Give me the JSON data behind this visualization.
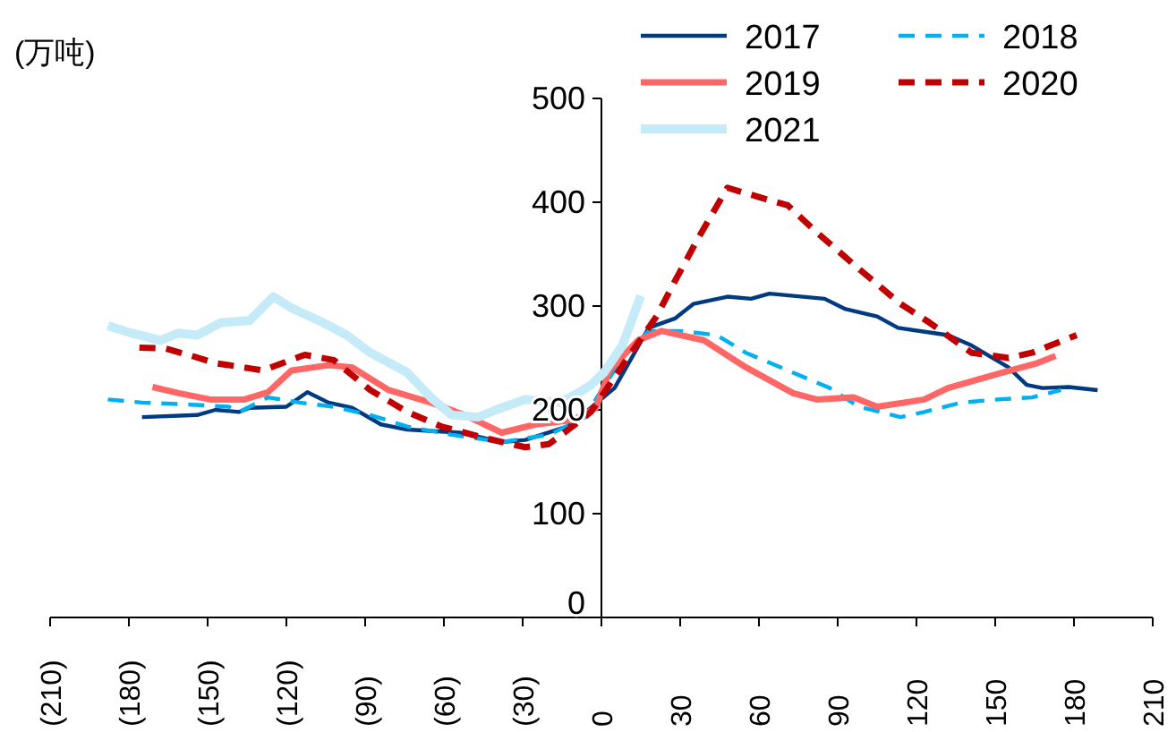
{
  "chart_data": {
    "type": "line",
    "ylabel": "(万吨)",
    "legend": "top right",
    "xlim": [
      -210,
      210
    ],
    "ylim": [
      0,
      500
    ],
    "xticks": [
      {
        "value": -210,
        "label": "(210)"
      },
      {
        "value": -180,
        "label": "(180)"
      },
      {
        "value": -150,
        "label": "(150)"
      },
      {
        "value": -120,
        "label": "(120)"
      },
      {
        "value": -90,
        "label": "(90)"
      },
      {
        "value": -60,
        "label": "(60)"
      },
      {
        "value": -30,
        "label": "(30)"
      },
      0,
      30,
      60,
      90,
      120,
      150,
      180,
      210
    ],
    "yticks": [
      0,
      100,
      200,
      300,
      400,
      500
    ],
    "series": [
      {
        "name": "2017",
        "color": "#003a80",
        "line_style": "solid",
        "x": [
          -175,
          -154,
          -147,
          -138,
          -134,
          -120,
          -112,
          -104,
          -95,
          -84,
          -74,
          -54,
          -38,
          -29,
          -13,
          -4,
          5,
          18,
          28,
          35,
          48,
          57,
          64,
          85,
          93,
          105,
          113,
          132,
          141,
          155,
          162,
          168,
          178,
          189
        ],
        "values": [
          193,
          195,
          200,
          198,
          202,
          203,
          217,
          207,
          202,
          186,
          181,
          178,
          169,
          171,
          184,
          202,
          221,
          279,
          288,
          302,
          309,
          307,
          312,
          307,
          297,
          290,
          279,
          272,
          262,
          241,
          224,
          221,
          222,
          219
        ]
      },
      {
        "name": "2018",
        "color": "#00b0f0",
        "line_style": "dashed",
        "x": [
          -188,
          -175,
          -156,
          -142,
          -138,
          -127,
          -115,
          -102,
          -88,
          -74,
          -57,
          -38,
          -20,
          -6,
          -4,
          8,
          18,
          30,
          44,
          55,
          71,
          87,
          98,
          114,
          123,
          137,
          151,
          164,
          175
        ],
        "values": [
          210,
          207,
          205,
          203,
          198,
          212,
          207,
          203,
          195,
          184,
          176,
          169,
          176,
          193,
          203,
          250,
          276,
          276,
          272,
          255,
          238,
          221,
          203,
          193,
          198,
          207,
          210,
          212,
          219
        ]
      },
      {
        "name": "2019",
        "color": "#ff6666",
        "line_style": "solid",
        "x": [
          -171,
          -161,
          -149,
          -136,
          -127,
          -118,
          -104,
          -95,
          -81,
          -65,
          -52,
          -38,
          -25,
          -11,
          -2,
          3,
          14,
          23,
          39,
          55,
          73,
          82,
          96,
          105,
          123,
          132,
          153,
          166,
          173
        ],
        "values": [
          222,
          216,
          210,
          210,
          217,
          238,
          243,
          241,
          219,
          207,
          195,
          178,
          186,
          190,
          202,
          238,
          267,
          276,
          267,
          241,
          216,
          210,
          212,
          203,
          210,
          221,
          236,
          245,
          252
        ]
      },
      {
        "name": "2020",
        "color": "#c00000",
        "line_style": "dashed",
        "x": [
          -176,
          -166,
          -156,
          -147,
          -134,
          -129,
          -113,
          -102,
          -88,
          -74,
          -61,
          -43,
          -29,
          -20,
          -11,
          -4,
          10,
          21,
          28,
          37,
          48,
          64,
          71,
          82,
          98,
          114,
          125,
          141,
          155,
          164,
          181
        ],
        "values": [
          260,
          259,
          252,
          245,
          240,
          238,
          253,
          248,
          219,
          198,
          184,
          172,
          164,
          167,
          184,
          198,
          250,
          290,
          324,
          366,
          414,
          402,
          397,
          371,
          336,
          302,
          284,
          255,
          250,
          255,
          272
        ]
      },
      {
        "name": "2021",
        "color": "#c5eaf8",
        "line_style": "solid",
        "x": [
          -188,
          -179,
          -168,
          -161,
          -154,
          -145,
          -134,
          -125,
          -118,
          -106,
          -97,
          -88,
          -74,
          -65,
          -57,
          -47,
          -38,
          -29,
          -16,
          -9,
          -4,
          1,
          8,
          15
        ],
        "values": [
          281,
          274,
          267,
          274,
          272,
          284,
          286,
          309,
          298,
          284,
          272,
          255,
          236,
          212,
          195,
          193,
          202,
          210,
          207,
          216,
          224,
          236,
          262,
          310
        ]
      }
    ]
  }
}
